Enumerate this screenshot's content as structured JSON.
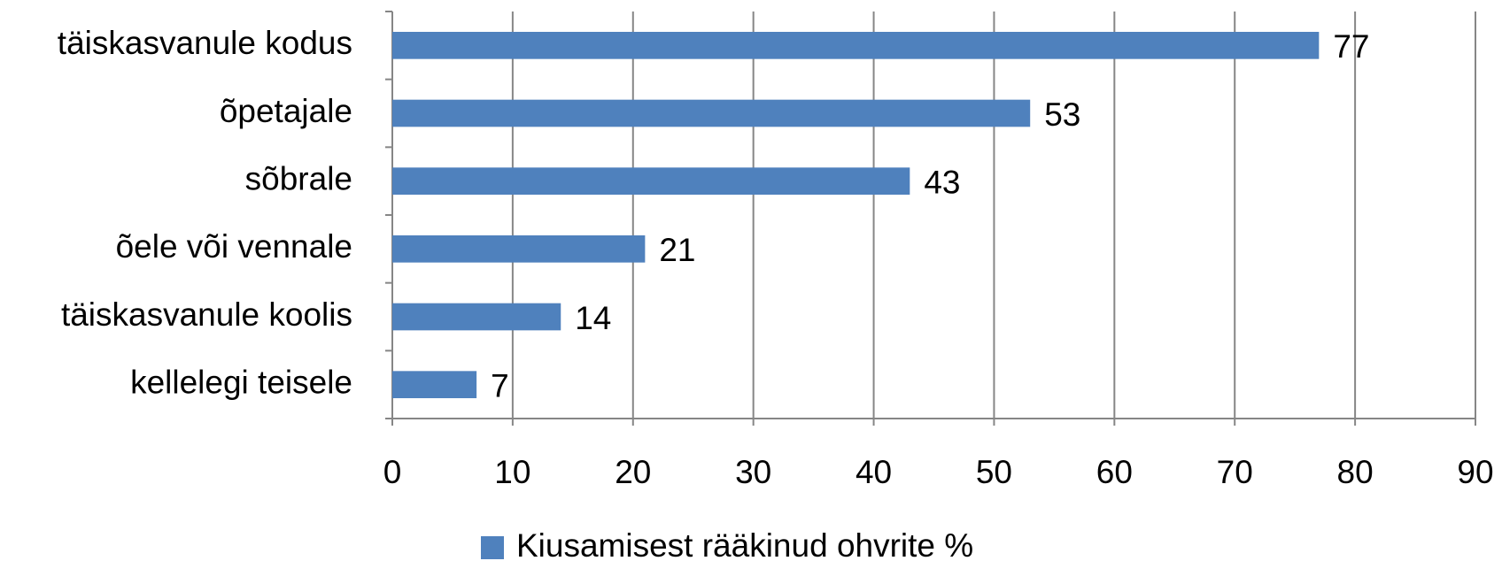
{
  "chart_data": {
    "type": "hbar",
    "categories": [
      "täiskasvanule kodus",
      "õpetajale",
      "sõbrale",
      "õele või vennale",
      "täiskasvanule koolis",
      "kellelegi teisele"
    ],
    "series": [
      {
        "name": "Kiusamisest rääkinud ohvrite %",
        "color": "#4f81bd",
        "values": [
          77,
          53,
          43,
          21,
          14,
          7
        ]
      }
    ],
    "xlim": [
      0,
      90
    ],
    "xticks": [
      0,
      10,
      20,
      30,
      40,
      50,
      60,
      70,
      80,
      90
    ],
    "grid": true,
    "legend": "bottom"
  }
}
